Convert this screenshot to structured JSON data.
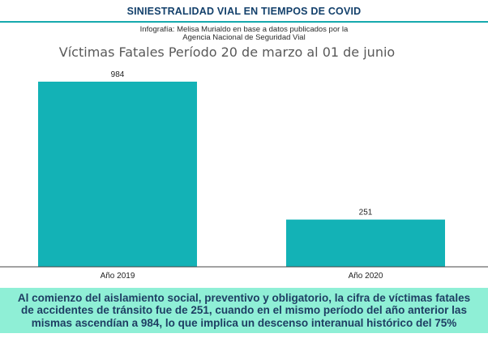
{
  "header": {
    "title": "SINIESTRALIDAD VIAL EN TIEMPOS DE COVID",
    "credit_line1": "Infografía: Melisa Murialdo en base a datos publicados por la",
    "credit_line2": "Agencia Nacional de Seguridad Vial"
  },
  "colors": {
    "title": "#13406b",
    "rule": "#16a9ad",
    "bar": "#13b2b6",
    "footer_bg": "#8fefd6",
    "footer_text": "#1e3e63"
  },
  "chart_data": {
    "type": "bar",
    "title": "Víctimas Fatales Período 20 de marzo al 01 de junio",
    "categories": [
      "Año 2019",
      "Año 2020"
    ],
    "values": [
      984,
      251
    ],
    "data_labels": [
      "984",
      "251"
    ],
    "xlabel": "",
    "ylabel": "",
    "ylim": [
      0,
      1000
    ],
    "grid": false,
    "legend": "none"
  },
  "footer": {
    "text": "Al comienzo del aislamiento social, preventivo y obligatorio, la cifra de víctimas fatales de accidentes de tránsito fue de 251, cuando en el mismo período del año anterior las mismas ascendían a 984, lo que implica un descenso interanual histórico del 75%"
  }
}
